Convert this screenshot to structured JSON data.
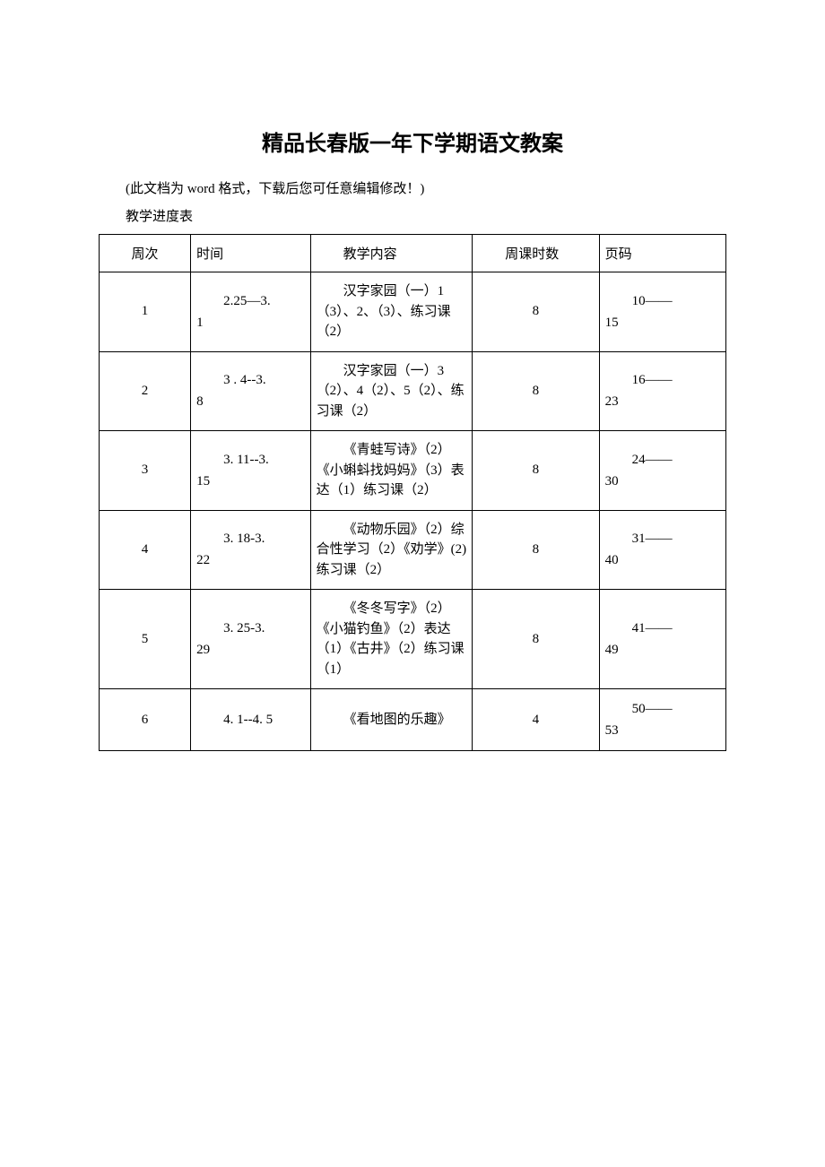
{
  "document": {
    "title": "精品长春版一年下学期语文教案",
    "intro": "(此文档为 word 格式，下载后您可任意编辑修改！)",
    "subtitle": "教学进度表"
  },
  "table": {
    "headers": {
      "week": "周次",
      "time": "时间",
      "content": "教学内容",
      "hours": "周课时数",
      "pages": "页码"
    },
    "rows": [
      {
        "week": "1",
        "time_upper": "2.25—3.",
        "time_lower": "1",
        "content": "汉字家园（一）1（3）、2、（3）、练习课（2）",
        "hours": "8",
        "pages_upper": "10——",
        "pages_lower": "15"
      },
      {
        "week": "2",
        "time_upper": "3 . 4--3.",
        "time_lower": "8",
        "content": "汉字家园（一）3（2）、4（2）、5（2）、练习课（2）",
        "hours": "8",
        "pages_upper": "16——",
        "pages_lower": "23"
      },
      {
        "week": "3",
        "time_upper": "3. 11--3.",
        "time_lower": "15",
        "content": "《青蛙写诗》（2）《小蝌蚪找妈妈》（3）表达（1）练习课（2）",
        "hours": "8",
        "pages_upper": "24——",
        "pages_lower": "30"
      },
      {
        "week": "4",
        "time_upper": "3. 18-3.",
        "time_lower": "22",
        "content": "《动物乐园》（2）综合性学习（2）《劝学》(2)练习课（2）",
        "hours": "8",
        "pages_upper": "31——",
        "pages_lower": "40"
      },
      {
        "week": "5",
        "time_upper": "3. 25-3.",
        "time_lower": "29",
        "content": "《冬冬写字》（2）《小猫钓鱼》（2）表达（1）《古井》（2）练习课（1）",
        "hours": "8",
        "pages_upper": "41——",
        "pages_lower": "49"
      },
      {
        "week": "6",
        "time_upper": "4. 1--4. 5",
        "time_lower": "",
        "content": "《看地图的乐趣》",
        "hours": "4",
        "pages_upper": "50——",
        "pages_lower": "53"
      }
    ]
  },
  "styles": {
    "background_color": "#ffffff",
    "border_color": "#000000",
    "title_fontsize": 24,
    "body_fontsize": 15,
    "font_family": "SimSun"
  }
}
